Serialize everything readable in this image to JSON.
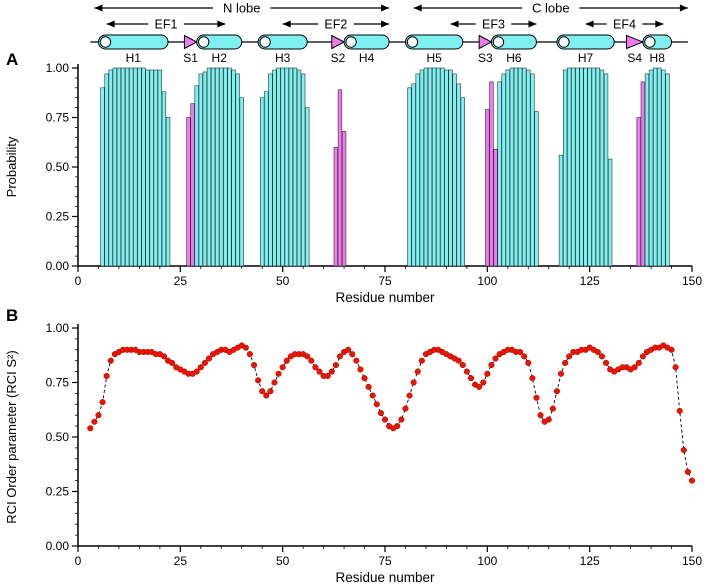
{
  "figure": {
    "panel_a_label": "A",
    "panel_b_label": "B"
  },
  "colors": {
    "helix_fill": "#7ef0f0",
    "strand_fill": "#ee7bee",
    "bar_edge": "#222222",
    "marker_fill": "#ee1500",
    "marker_edge": "#990000",
    "axis": "#000000"
  },
  "schematic": {
    "backbone": {
      "start": 3,
      "end": 149
    },
    "lobes": [
      {
        "label": "N lobe",
        "start": 4,
        "end": 76
      },
      {
        "label": "C lobe",
        "start": 82,
        "end": 149
      }
    ],
    "ef_hands": [
      {
        "label": "EF1",
        "start": 7,
        "end": 36
      },
      {
        "label": "EF2",
        "start": 50,
        "end": 76
      },
      {
        "label": "EF3",
        "start": 91,
        "end": 112
      },
      {
        "label": "EF4",
        "start": 124,
        "end": 143
      }
    ],
    "elements": [
      {
        "type": "helix",
        "label": "H1",
        "start": 5,
        "end": 22
      },
      {
        "type": "strand",
        "label": "S1",
        "start": 26,
        "end": 29
      },
      {
        "type": "helix",
        "label": "H2",
        "start": 29,
        "end": 40
      },
      {
        "type": "helix",
        "label": "H3",
        "start": 44,
        "end": 56
      },
      {
        "type": "strand",
        "label": "S2",
        "start": 62,
        "end": 65
      },
      {
        "type": "helix",
        "label": "H4",
        "start": 65,
        "end": 76
      },
      {
        "type": "helix",
        "label": "H5",
        "start": 80,
        "end": 94
      },
      {
        "type": "strand",
        "label": "S3",
        "start": 98,
        "end": 101
      },
      {
        "type": "helix",
        "label": "H6",
        "start": 101,
        "end": 112
      },
      {
        "type": "helix",
        "label": "H7",
        "start": 117,
        "end": 131
      },
      {
        "type": "strand",
        "label": "S4",
        "start": 134,
        "end": 138
      },
      {
        "type": "helix",
        "label": "H8",
        "start": 138,
        "end": 145
      }
    ]
  },
  "chart_data": [
    {
      "type": "bar",
      "title": "Secondary structure probability per residue",
      "xlabel": "Residue number",
      "ylabel": "Probability",
      "xlim": [
        0,
        150
      ],
      "ylim": [
        0.0,
        1.0
      ],
      "xticks": [
        0,
        25,
        50,
        75,
        100,
        125,
        150
      ],
      "yticks": [
        "0.00",
        "0.25",
        "0.50",
        "0.75",
        "1.00"
      ],
      "grid": false,
      "legend": "none",
      "series": [
        {
          "name": "helix",
          "color": "#7ef0f0",
          "points": [
            [
              6,
              0.9
            ],
            [
              7,
              0.97
            ],
            [
              8,
              0.99
            ],
            [
              9,
              1.0
            ],
            [
              10,
              1.0
            ],
            [
              11,
              1.0
            ],
            [
              12,
              1.0
            ],
            [
              13,
              1.0
            ],
            [
              14,
              1.0
            ],
            [
              15,
              1.0
            ],
            [
              16,
              1.0
            ],
            [
              17,
              0.99
            ],
            [
              18,
              0.99
            ],
            [
              19,
              0.99
            ],
            [
              20,
              0.99
            ],
            [
              21,
              0.88
            ],
            [
              22,
              0.75
            ],
            [
              29,
              0.91
            ],
            [
              30,
              0.97
            ],
            [
              31,
              0.98
            ],
            [
              32,
              1.0
            ],
            [
              33,
              1.0
            ],
            [
              34,
              1.0
            ],
            [
              35,
              1.0
            ],
            [
              36,
              1.0
            ],
            [
              37,
              1.0
            ],
            [
              38,
              0.99
            ],
            [
              39,
              0.97
            ],
            [
              40,
              0.85
            ],
            [
              45,
              0.85
            ],
            [
              46,
              0.88
            ],
            [
              47,
              0.97
            ],
            [
              48,
              0.99
            ],
            [
              49,
              1.0
            ],
            [
              50,
              1.0
            ],
            [
              51,
              1.0
            ],
            [
              52,
              1.0
            ],
            [
              53,
              1.0
            ],
            [
              54,
              0.99
            ],
            [
              55,
              0.97
            ],
            [
              56,
              0.8
            ],
            [
              81,
              0.9
            ],
            [
              82,
              0.92
            ],
            [
              83,
              0.97
            ],
            [
              84,
              0.99
            ],
            [
              85,
              1.0
            ],
            [
              86,
              1.0
            ],
            [
              87,
              1.0
            ],
            [
              88,
              1.0
            ],
            [
              89,
              1.0
            ],
            [
              90,
              0.99
            ],
            [
              91,
              0.99
            ],
            [
              92,
              0.97
            ],
            [
              93,
              0.92
            ],
            [
              94,
              0.85
            ],
            [
              103,
              0.93
            ],
            [
              104,
              0.97
            ],
            [
              105,
              0.99
            ],
            [
              106,
              1.0
            ],
            [
              107,
              1.0
            ],
            [
              108,
              1.0
            ],
            [
              109,
              1.0
            ],
            [
              110,
              0.99
            ],
            [
              111,
              0.97
            ],
            [
              112,
              0.78
            ],
            [
              118,
              0.56
            ],
            [
              119,
              0.99
            ],
            [
              120,
              1.0
            ],
            [
              121,
              1.0
            ],
            [
              122,
              1.0
            ],
            [
              123,
              1.0
            ],
            [
              124,
              1.0
            ],
            [
              125,
              1.0
            ],
            [
              126,
              1.0
            ],
            [
              127,
              1.0
            ],
            [
              128,
              0.99
            ],
            [
              129,
              0.97
            ],
            [
              130,
              0.54
            ],
            [
              139,
              0.97
            ],
            [
              140,
              0.99
            ],
            [
              141,
              1.0
            ],
            [
              142,
              1.0
            ],
            [
              143,
              0.99
            ],
            [
              144,
              0.97
            ]
          ]
        },
        {
          "name": "strand",
          "color": "#ee7bee",
          "points": [
            [
              27,
              0.75
            ],
            [
              28,
              0.82
            ],
            [
              63,
              0.6
            ],
            [
              64,
              0.89
            ],
            [
              65,
              0.68
            ],
            [
              100,
              0.79
            ],
            [
              101,
              0.93
            ],
            [
              102,
              0.59
            ],
            [
              137,
              0.75
            ],
            [
              138,
              0.93
            ]
          ]
        }
      ]
    },
    {
      "type": "scatter",
      "title": "RCI order parameter per residue",
      "xlabel": "Residue number",
      "ylabel": "RCI Order parameter (RCI S²)",
      "xlim": [
        0,
        150
      ],
      "ylim": [
        0.0,
        1.0
      ],
      "xticks": [
        0,
        25,
        50,
        75,
        100,
        125,
        150
      ],
      "yticks": [
        "0.00",
        "0.25",
        "0.50",
        "0.75",
        "1.00"
      ],
      "grid": false,
      "legend": "none",
      "line_style": "dashed",
      "marker": "circle",
      "x": [
        3,
        4,
        5,
        6,
        7,
        8,
        9,
        10,
        11,
        12,
        13,
        14,
        15,
        16,
        17,
        18,
        19,
        20,
        21,
        22,
        23,
        24,
        25,
        26,
        27,
        28,
        29,
        30,
        31,
        32,
        33,
        34,
        35,
        36,
        37,
        38,
        39,
        40,
        41,
        42,
        43,
        44,
        45,
        46,
        47,
        48,
        49,
        50,
        51,
        52,
        53,
        54,
        55,
        56,
        57,
        58,
        59,
        60,
        61,
        62,
        63,
        64,
        65,
        66,
        67,
        68,
        69,
        70,
        71,
        72,
        73,
        74,
        75,
        76,
        77,
        78,
        79,
        80,
        81,
        82,
        83,
        84,
        85,
        86,
        87,
        88,
        89,
        90,
        91,
        92,
        93,
        94,
        95,
        96,
        97,
        98,
        99,
        100,
        101,
        102,
        103,
        104,
        105,
        106,
        107,
        108,
        109,
        110,
        111,
        112,
        113,
        114,
        115,
        116,
        117,
        118,
        119,
        120,
        121,
        122,
        123,
        124,
        125,
        126,
        127,
        128,
        129,
        130,
        131,
        132,
        133,
        134,
        135,
        136,
        137,
        138,
        139,
        140,
        141,
        142,
        143,
        144,
        145,
        146,
        147,
        148,
        149,
        150
      ],
      "y": [
        0.54,
        0.57,
        0.6,
        0.66,
        0.78,
        0.85,
        0.88,
        0.89,
        0.9,
        0.9,
        0.9,
        0.9,
        0.89,
        0.89,
        0.89,
        0.89,
        0.88,
        0.88,
        0.87,
        0.85,
        0.84,
        0.82,
        0.81,
        0.8,
        0.79,
        0.79,
        0.8,
        0.82,
        0.84,
        0.86,
        0.88,
        0.89,
        0.9,
        0.9,
        0.89,
        0.9,
        0.91,
        0.92,
        0.91,
        0.88,
        0.83,
        0.76,
        0.71,
        0.69,
        0.71,
        0.75,
        0.79,
        0.82,
        0.85,
        0.87,
        0.88,
        0.88,
        0.88,
        0.87,
        0.85,
        0.82,
        0.8,
        0.78,
        0.78,
        0.8,
        0.83,
        0.87,
        0.89,
        0.9,
        0.88,
        0.85,
        0.81,
        0.77,
        0.73,
        0.69,
        0.65,
        0.61,
        0.58,
        0.55,
        0.54,
        0.55,
        0.58,
        0.63,
        0.69,
        0.75,
        0.8,
        0.85,
        0.88,
        0.89,
        0.9,
        0.9,
        0.89,
        0.88,
        0.87,
        0.86,
        0.85,
        0.83,
        0.8,
        0.77,
        0.74,
        0.73,
        0.75,
        0.79,
        0.83,
        0.86,
        0.88,
        0.89,
        0.9,
        0.9,
        0.89,
        0.89,
        0.87,
        0.84,
        0.77,
        0.68,
        0.6,
        0.57,
        0.58,
        0.63,
        0.71,
        0.79,
        0.84,
        0.87,
        0.89,
        0.89,
        0.9,
        0.9,
        0.91,
        0.9,
        0.89,
        0.87,
        0.84,
        0.81,
        0.8,
        0.81,
        0.82,
        0.82,
        0.81,
        0.82,
        0.84,
        0.87,
        0.89,
        0.9,
        0.91,
        0.91,
        0.92,
        0.91,
        0.9,
        0.82,
        0.62,
        0.44,
        0.34,
        0.3
      ]
    }
  ]
}
